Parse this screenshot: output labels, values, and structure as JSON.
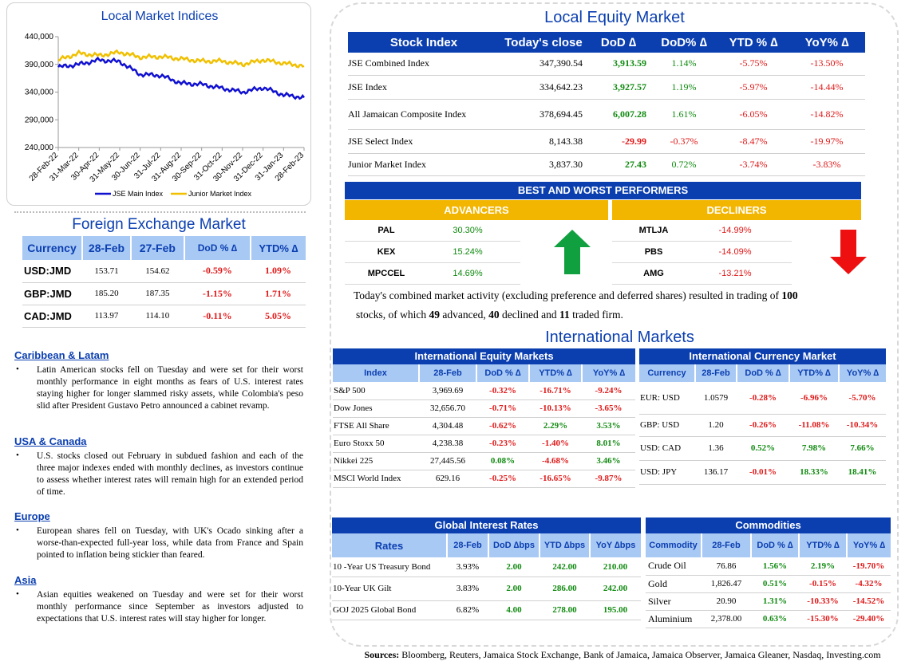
{
  "local_indices": {
    "title": "Local Market Indices",
    "chart_data": {
      "type": "line",
      "x": [
        "28-Feb-22",
        "31-Mar-22",
        "30-Apr-22",
        "31-May-22",
        "30-Jun-22",
        "31-Jul-22",
        "31-Aug-22",
        "30-Sep-22",
        "31-Oct-22",
        "30-Nov-22",
        "31-Dec-22",
        "31-Jan-23",
        "28-Feb-23"
      ],
      "series": [
        {
          "name": "JSE Main Index",
          "color": "#1010d0",
          "values": [
            385000,
            390000,
            398000,
            395000,
            372000,
            370000,
            356000,
            354000,
            347000,
            340000,
            348000,
            335000,
            330000
          ]
        },
        {
          "name": "Junior Market Index",
          "color": "#f0c000",
          "values": [
            398000,
            410000,
            406000,
            412000,
            403000,
            404000,
            400000,
            396000,
            396000,
            390000,
            398000,
            392000,
            387000
          ]
        }
      ],
      "yticks": [
        "440,000",
        "390,000",
        "340,000",
        "290,000",
        "240,000"
      ],
      "ylim": [
        240000,
        440000
      ],
      "grid": false,
      "legend": "bottom"
    }
  },
  "fx": {
    "title": "Foreign Exchange Market",
    "headers": [
      "Currency",
      "28-Feb",
      "27-Feb",
      "DoD % ∆",
      "YTD% ∆"
    ],
    "rows": [
      {
        "c": "USD:JMD",
        "a": "153.71",
        "b": "154.62",
        "d": "-0.59%",
        "y": "1.09%"
      },
      {
        "c": "GBP:JMD",
        "a": "185.20",
        "b": "187.35",
        "d": "-1.15%",
        "y": "1.71%"
      },
      {
        "c": "CAD:JMD",
        "a": "113.97",
        "b": "114.10",
        "d": "-0.11%",
        "y": "5.05%"
      }
    ]
  },
  "news": [
    {
      "head": "Caribbean & Latam",
      "body": "Latin American stocks fell on Tuesday and were set for their worst monthly performance in eight months as fears of U.S. interest rates staying higher for longer slammed risky assets, while Colombia's peso slid after President Gustavo Petro announced a cabinet revamp."
    },
    {
      "head": "USA & Canada",
      "body": "U.S. stocks closed out February in subdued fashion and each of the three major indexes ended with monthly declines, as investors continue to assess whether interest rates will remain high for an extended period of time."
    },
    {
      "head": "Europe",
      "body": "European shares fell on Tuesday, with UK's Ocado sinking after a worse-than-expected full-year loss, while data from France and Spain pointed to inflation being stickier than feared."
    },
    {
      "head": "Asia",
      "body": "Asian equities weakened on Tuesday and were set for their worst monthly performance since September as investors adjusted to expectations that U.S. interest rates will stay higher for longer."
    }
  ],
  "equity": {
    "title": "Local Equity Market",
    "headers": [
      "Stock Index",
      "Today's close",
      "DoD  ∆",
      "DoD% ∆",
      "YTD % ∆",
      "YoY% ∆"
    ],
    "rows": [
      {
        "n": "JSE Combined Index",
        "c": "347,390.54",
        "d": "3,913.59",
        "dp": "1.14%",
        "y": "-5.75%",
        "yy": "-13.50%"
      },
      {
        "n": "JSE Index",
        "c": "334,642.23",
        "d": "3,927.57",
        "dp": "1.19%",
        "y": "-5.97%",
        "yy": "-14.44%"
      },
      {
        "n": "All Jamaican Composite Index",
        "c": "378,694.45",
        "d": "6,007.28",
        "dp": "1.61%",
        "y": "-6.05%",
        "yy": "-14.82%"
      },
      {
        "n": "JSE Select Index",
        "c": "8,143.38",
        "d": "-29.99",
        "dp": "-0.37%",
        "y": "-8.47%",
        "yy": "-19.97%"
      },
      {
        "n": "Junior Market Index",
        "c": "3,837.30",
        "d": "27.43",
        "dp": "0.72%",
        "y": "-3.74%",
        "yy": "-3.83%"
      }
    ]
  },
  "performers": {
    "title": "BEST AND WORST PERFORMERS",
    "adv_label": "ADVANCERS",
    "dec_label": "DECLINERS",
    "advancers": [
      {
        "s": "PAL",
        "v": "30.30%"
      },
      {
        "s": "KEX",
        "v": "15.24%"
      },
      {
        "s": "MPCCEL",
        "v": "14.69%"
      }
    ],
    "decliners": [
      {
        "s": "MTLJA",
        "v": "-14.99%"
      },
      {
        "s": "PBS",
        "v": "-14.09%"
      },
      {
        "s": "AMG",
        "v": "-13.21%"
      }
    ]
  },
  "summary": {
    "t1": "Today's combined market activity (excluding preference and deferred shares) resulted in trading of ",
    "total": "100",
    "t2": "stocks, of which ",
    "adv": "49",
    "t3": " advanced, ",
    "dec": "40",
    "t4": " declined and ",
    "firm": "11",
    "t5": " traded firm."
  },
  "intl": {
    "title": "International Markets",
    "equity": {
      "title": "International Equity Markets",
      "headers": [
        "Index",
        "28-Feb",
        "DoD % ∆",
        "YTD% ∆",
        "YoY% ∆"
      ],
      "rows": [
        {
          "n": "S&P 500",
          "v": "3,969.69",
          "d": "-0.32%",
          "y": "-16.71%",
          "yy": "-9.24%"
        },
        {
          "n": "Dow Jones",
          "v": "32,656.70",
          "d": "-0.71%",
          "y": "-10.13%",
          "yy": "-3.65%"
        },
        {
          "n": "FTSE All Share",
          "v": "4,304.48",
          "d": "-0.62%",
          "y": "2.29%",
          "yy": "3.53%"
        },
        {
          "n": "Euro Stoxx 50",
          "v": "4,238.38",
          "d": "-0.23%",
          "y": "-1.40%",
          "yy": "8.01%"
        },
        {
          "n": "Nikkei 225",
          "v": "27,445.56",
          "d": "0.08%",
          "y": "-4.68%",
          "yy": "3.46%"
        },
        {
          "n": "MSCI World Index",
          "v": "629.16",
          "d": "-0.25%",
          "y": "-16.65%",
          "yy": "-9.87%"
        }
      ]
    },
    "currency": {
      "title": "International Currency Market",
      "headers": [
        "Currency",
        "28-Feb",
        "DoD % ∆",
        "YTD% ∆",
        "YoY% ∆"
      ],
      "rows": [
        {
          "n": "EUR: USD",
          "v": "1.0579",
          "d": "-0.28%",
          "y": "-6.96%",
          "yy": "-5.70%"
        },
        {
          "n": "GBP: USD",
          "v": "1.20",
          "d": "-0.26%",
          "y": "-11.08%",
          "yy": "-10.34%"
        },
        {
          "n": "USD: CAD",
          "v": "1.36",
          "d": "0.52%",
          "y": "7.98%",
          "yy": "7.66%"
        },
        {
          "n": "USD: JPY",
          "v": "136.17",
          "d": "-0.01%",
          "y": "18.33%",
          "yy": "18.41%"
        }
      ]
    },
    "rates": {
      "title": "Global Interest Rates",
      "headers": [
        "Rates",
        "28-Feb",
        "DoD ∆bps",
        "YTD ∆bps",
        "YoY ∆bps"
      ],
      "rows": [
        {
          "n": "10 -Year US Treasury Bond",
          "v": "3.93%",
          "d": "2.00",
          "y": "242.00",
          "yy": "210.00"
        },
        {
          "n": "10-Year UK Gilt",
          "v": "3.83%",
          "d": "2.00",
          "y": "286.00",
          "yy": "242.00"
        },
        {
          "n": "GOJ 2025 Global Bond",
          "v": "6.82%",
          "d": "4.00",
          "y": "278.00",
          "yy": "195.00"
        }
      ]
    },
    "commodities": {
      "title": "Commodities",
      "headers": [
        "Commodity",
        "28-Feb",
        "DoD % ∆",
        "YTD% ∆",
        "YoY% ∆"
      ],
      "rows": [
        {
          "n": "Crude Oil",
          "v": "76.86",
          "d": "1.56%",
          "y": "2.19%",
          "yy": "-19.70%"
        },
        {
          "n": "Gold",
          "v": "1,826.47",
          "d": "0.51%",
          "y": "-0.15%",
          "yy": "-4.32%"
        },
        {
          "n": "Silver",
          "v": "20.90",
          "d": "1.31%",
          "y": "-10.33%",
          "yy": "-14.52%"
        },
        {
          "n": "Aluminium",
          "v": "2,378.00",
          "d": "0.63%",
          "y": "-15.30%",
          "yy": "-29.40%"
        }
      ]
    }
  },
  "sources": {
    "label": "Sources:",
    "text": " Bloomberg, Reuters, Jamaica Stock Exchange, Bank of Jamaica, Jamaica Observer, Jamaica Gleaner, Nasdaq, Investing.com"
  }
}
